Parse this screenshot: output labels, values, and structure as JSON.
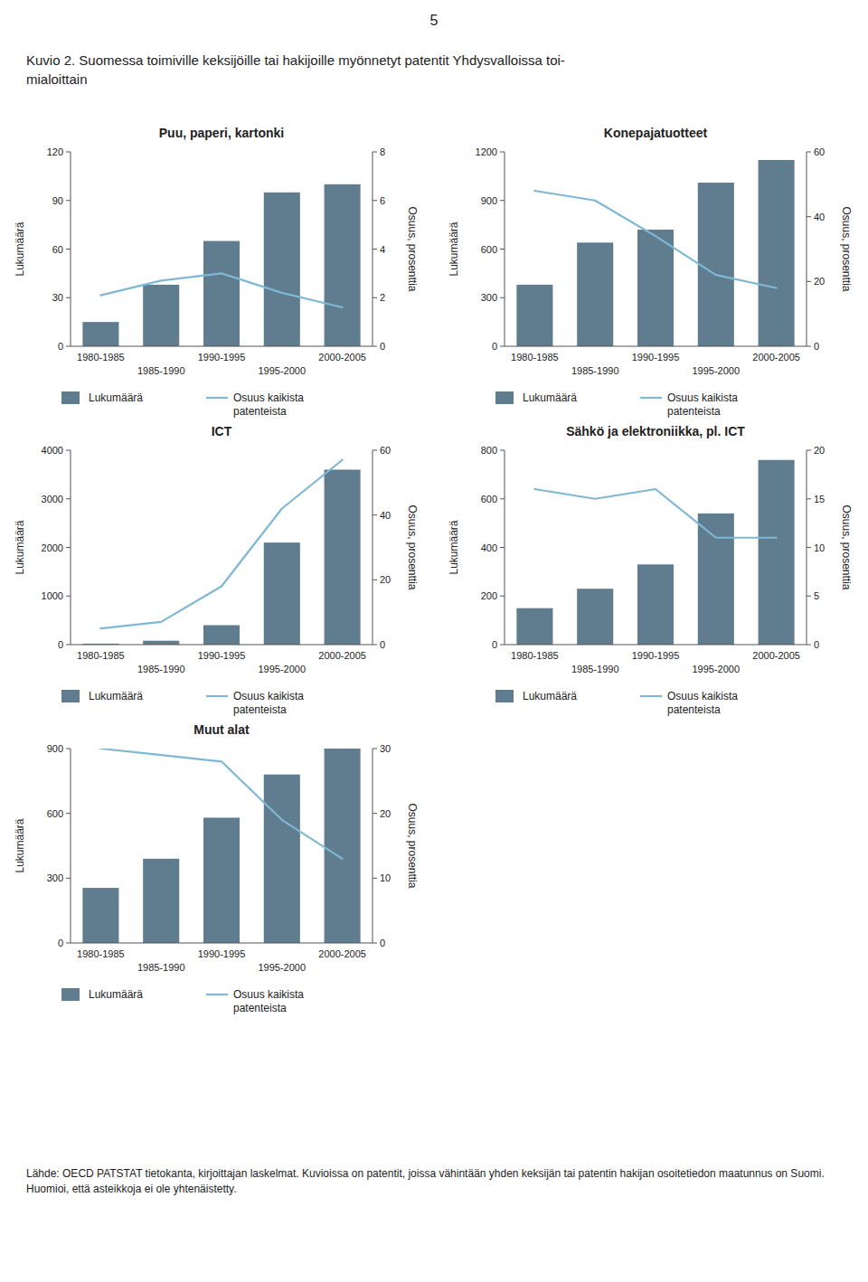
{
  "page_number": "5",
  "title": [
    "Kuvio 2. Suomessa toimiville keksijöille tai hakijoille myönnetyt patentit Yhdysvalloissa toi-",
    "mialoittain"
  ],
  "footer": "Lähde: OECD PATSTAT tietokanta, kirjoittajan laskelmat. Kuvioissa on patentit, joissa vähintään yhden keksijän tai patentin hakijan osoitetiedon maatunnus on Suomi. Huomioi, että asteikkoja ei ole yhtenäistetty.",
  "chart_data": [
    {
      "type": "bar",
      "title": "Puu, paperi, kartonki",
      "categories": [
        "1980-1985",
        "1985-1990",
        "1990-1995",
        "1995-2000",
        "2000-2005"
      ],
      "series": [
        {
          "name": "Lukumäärä",
          "type": "bar",
          "color": "#607d8f",
          "values": [
            15,
            38,
            65,
            95,
            100
          ]
        },
        {
          "name": "Osuus kaikista\npatenteista",
          "type": "line",
          "axis": "y2",
          "color": "#7eb8d4",
          "values": [
            2.1,
            2.7,
            3.0,
            2.2,
            1.6
          ]
        }
      ],
      "y_label": "Lukumäärä",
      "y2_label": "Osuus, prosenttia",
      "ylim": [
        0,
        120
      ],
      "yticks": [
        0,
        30,
        60,
        90,
        120
      ],
      "y2lim": [
        0,
        8
      ],
      "y2ticks": [
        0,
        2,
        4,
        6,
        8
      ],
      "grid": false
    },
    {
      "type": "bar",
      "title": "Konepajatuotteet",
      "categories": [
        "1980-1985",
        "1985-1990",
        "1990-1995",
        "1995-2000",
        "2000-2005"
      ],
      "series": [
        {
          "name": "Lukumäärä",
          "type": "bar",
          "color": "#607d8f",
          "values": [
            380,
            640,
            720,
            1010,
            1150
          ]
        },
        {
          "name": "Osuus kaikista\npatenteista",
          "type": "line",
          "axis": "y2",
          "color": "#7eb8d4",
          "values": [
            48,
            45,
            34,
            22,
            18
          ]
        }
      ],
      "y_label": "Lukumäärä",
      "y2_label": "Osuus, prosenttia",
      "ylim": [
        0,
        1200
      ],
      "yticks": [
        0,
        300,
        600,
        900,
        1200
      ],
      "y2lim": [
        0,
        60
      ],
      "y2ticks": [
        0,
        20,
        40,
        60
      ],
      "grid": false
    },
    {
      "type": "bar",
      "title": "ICT",
      "categories": [
        "1980-1985",
        "1985-1990",
        "1990-1995",
        "1995-2000",
        "2000-2005"
      ],
      "series": [
        {
          "name": "Lukumäärä",
          "type": "bar",
          "color": "#607d8f",
          "values": [
            20,
            80,
            400,
            2100,
            3600
          ]
        },
        {
          "name": "Osuus kaikista\npatenteista",
          "type": "line",
          "axis": "y2",
          "color": "#7eb8d4",
          "values": [
            5,
            7,
            18,
            42,
            57
          ]
        }
      ],
      "y_label": "Lukumäärä",
      "y2_label": "Osuus, prosenttia",
      "ylim": [
        0,
        4000
      ],
      "yticks": [
        0,
        1000,
        2000,
        3000,
        4000
      ],
      "y2lim": [
        0,
        60
      ],
      "y2ticks": [
        0,
        20,
        40,
        60
      ],
      "grid": false
    },
    {
      "type": "bar",
      "title": "Sähkö ja elektroniikka, pl. ICT",
      "categories": [
        "1980-1985",
        "1985-1990",
        "1990-1995",
        "1995-2000",
        "2000-2005"
      ],
      "series": [
        {
          "name": "Lukumäärä",
          "type": "bar",
          "color": "#607d8f",
          "values": [
            150,
            230,
            330,
            540,
            760
          ]
        },
        {
          "name": "Osuus kaikista\npatenteista",
          "type": "line",
          "axis": "y2",
          "color": "#7eb8d4",
          "values": [
            16,
            15,
            16,
            11,
            11
          ]
        }
      ],
      "y_label": "Lukumäärä",
      "y2_label": "Osuus, prosenttia",
      "ylim": [
        0,
        800
      ],
      "yticks": [
        0,
        200,
        400,
        600,
        800
      ],
      "y2lim": [
        0,
        20
      ],
      "y2ticks": [
        0,
        5,
        10,
        15,
        20
      ],
      "grid": false
    },
    {
      "type": "bar",
      "title": "Muut alat",
      "categories": [
        "1980-1985",
        "1985-1990",
        "1990-1995",
        "1995-2000",
        "2000-2005"
      ],
      "series": [
        {
          "name": "Lukumäärä",
          "type": "bar",
          "color": "#607d8f",
          "values": [
            255,
            390,
            580,
            780,
            900
          ]
        },
        {
          "name": "Osuus kaikista\npatenteista",
          "type": "line",
          "axis": "y2",
          "color": "#7eb8d4",
          "values": [
            30,
            29,
            28,
            19,
            13
          ]
        }
      ],
      "y_label": "Lukumäärä",
      "y2_label": "Osuus, prosenttia",
      "ylim": [
        0,
        900
      ],
      "yticks": [
        0,
        300,
        600,
        900
      ],
      "y2lim": [
        0,
        30
      ],
      "y2ticks": [
        0,
        10,
        20,
        30
      ],
      "grid": false
    }
  ]
}
